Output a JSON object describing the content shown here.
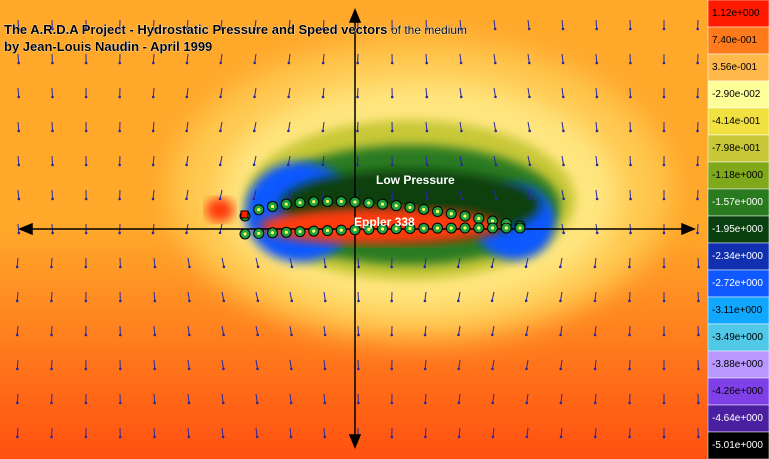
{
  "title_line1": "The A.R.D.A Project - Hydrostatic Pressure and Speed vectors",
  "title_suffix": "of the medium",
  "title_line2": "by Jean-Louis Naudin - April 1999",
  "region_label": "Low Pressure",
  "airfoil_label": "Eppler 338",
  "legend": [
    {
      "label": "1.12e+000",
      "color": "#ff1a00"
    },
    {
      "label": "7.40e-001",
      "color": "#ff7a1a"
    },
    {
      "label": "3.56e-001",
      "color": "#ffb84a"
    },
    {
      "label": "-2.90e-002",
      "color": "#ffff9a"
    },
    {
      "label": "-4.14e-001",
      "color": "#f0e040"
    },
    {
      "label": "-7.98e-001",
      "color": "#c8c838"
    },
    {
      "label": "-1.18e+000",
      "color": "#7fa81a"
    },
    {
      "label": "-1.57e+000",
      "color": "#2a7a20"
    },
    {
      "label": "-1.95e+000",
      "color": "#0a4010"
    },
    {
      "label": "-2.34e+000",
      "color": "#1030b0"
    },
    {
      "label": "-2.72e+000",
      "color": "#1058ff"
    },
    {
      "label": "-3.11e+000",
      "color": "#10a8ff"
    },
    {
      "label": "-3.49e+000",
      "color": "#50c8e8"
    },
    {
      "label": "-3.88e+000",
      "color": "#b898ff"
    },
    {
      "label": "-4.26e+000",
      "color": "#8040e8"
    },
    {
      "label": "-4.64e+000",
      "color": "#4a20a0"
    },
    {
      "label": "-5.01e+000",
      "color": "#000000"
    }
  ]
}
